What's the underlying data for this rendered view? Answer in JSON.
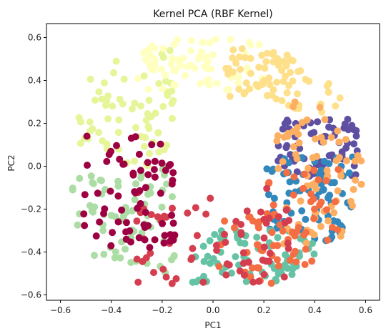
{
  "chart_data": {
    "type": "scatter",
    "title": "Kernel PCA (RBF Kernel)",
    "xlabel": "PC1",
    "ylabel": "PC2",
    "xlim": [
      -0.655,
      0.655
    ],
    "ylim": [
      -0.625,
      0.665
    ],
    "xticks": [
      -0.6,
      -0.4,
      -0.2,
      0.0,
      0.2,
      0.4,
      0.6
    ],
    "yticks": [
      -0.6,
      -0.4,
      -0.2,
      0.0,
      0.2,
      0.4,
      0.6
    ],
    "xtick_labels": [
      "−0.6",
      "−0.4",
      "−0.2",
      "0.0",
      "0.2",
      "0.4",
      "0.6"
    ],
    "ytick_labels": [
      "−0.6",
      "−0.4",
      "−0.2",
      "0.0",
      "0.2",
      "0.4",
      "0.6"
    ],
    "grid": false,
    "legend": "none",
    "colormap": "Spectral",
    "point_count": 800,
    "color_groups": [
      {
        "color": "#5e4fa2",
        "region": "inner right, upper",
        "x_range": [
          0.25,
          0.57
        ],
        "y_range": [
          -0.05,
          0.22
        ]
      },
      {
        "color": "#3288bd",
        "region": "inner right",
        "x_range": [
          0.2,
          0.55
        ],
        "y_range": [
          -0.35,
          0.05
        ]
      },
      {
        "color": "#66c2a5",
        "region": "bottom inner",
        "x_range": [
          -0.1,
          0.4
        ],
        "y_range": [
          -0.55,
          -0.3
        ]
      },
      {
        "color": "#abdda4",
        "region": "lower left outer",
        "x_range": [
          -0.58,
          -0.15
        ],
        "y_range": [
          -0.5,
          0.0
        ]
      },
      {
        "color": "#e6f598",
        "region": "upper left outer",
        "x_range": [
          -0.55,
          -0.15
        ],
        "y_range": [
          0.0,
          0.55
        ]
      },
      {
        "color": "#ffffbf",
        "region": "top",
        "x_range": [
          -0.3,
          0.2
        ],
        "y_range": [
          0.35,
          0.6
        ]
      },
      {
        "color": "#fee08b",
        "region": "upper right outer",
        "x_range": [
          0.05,
          0.5
        ],
        "y_range": [
          0.25,
          0.55
        ]
      },
      {
        "color": "#fdae61",
        "region": "right outer",
        "x_range": [
          0.25,
          0.6
        ],
        "y_range": [
          -0.4,
          0.3
        ]
      },
      {
        "color": "#f46d43",
        "region": "inner right lower",
        "x_range": [
          0.0,
          0.5
        ],
        "y_range": [
          -0.55,
          0.0
        ]
      },
      {
        "color": "#d53e4f",
        "region": "bottom",
        "x_range": [
          -0.3,
          0.3
        ],
        "y_range": [
          -0.55,
          -0.1
        ]
      },
      {
        "color": "#9e0142",
        "region": "inner left",
        "x_range": [
          -0.52,
          -0.15
        ],
        "y_range": [
          -0.4,
          0.15
        ]
      }
    ],
    "seed": 42
  }
}
